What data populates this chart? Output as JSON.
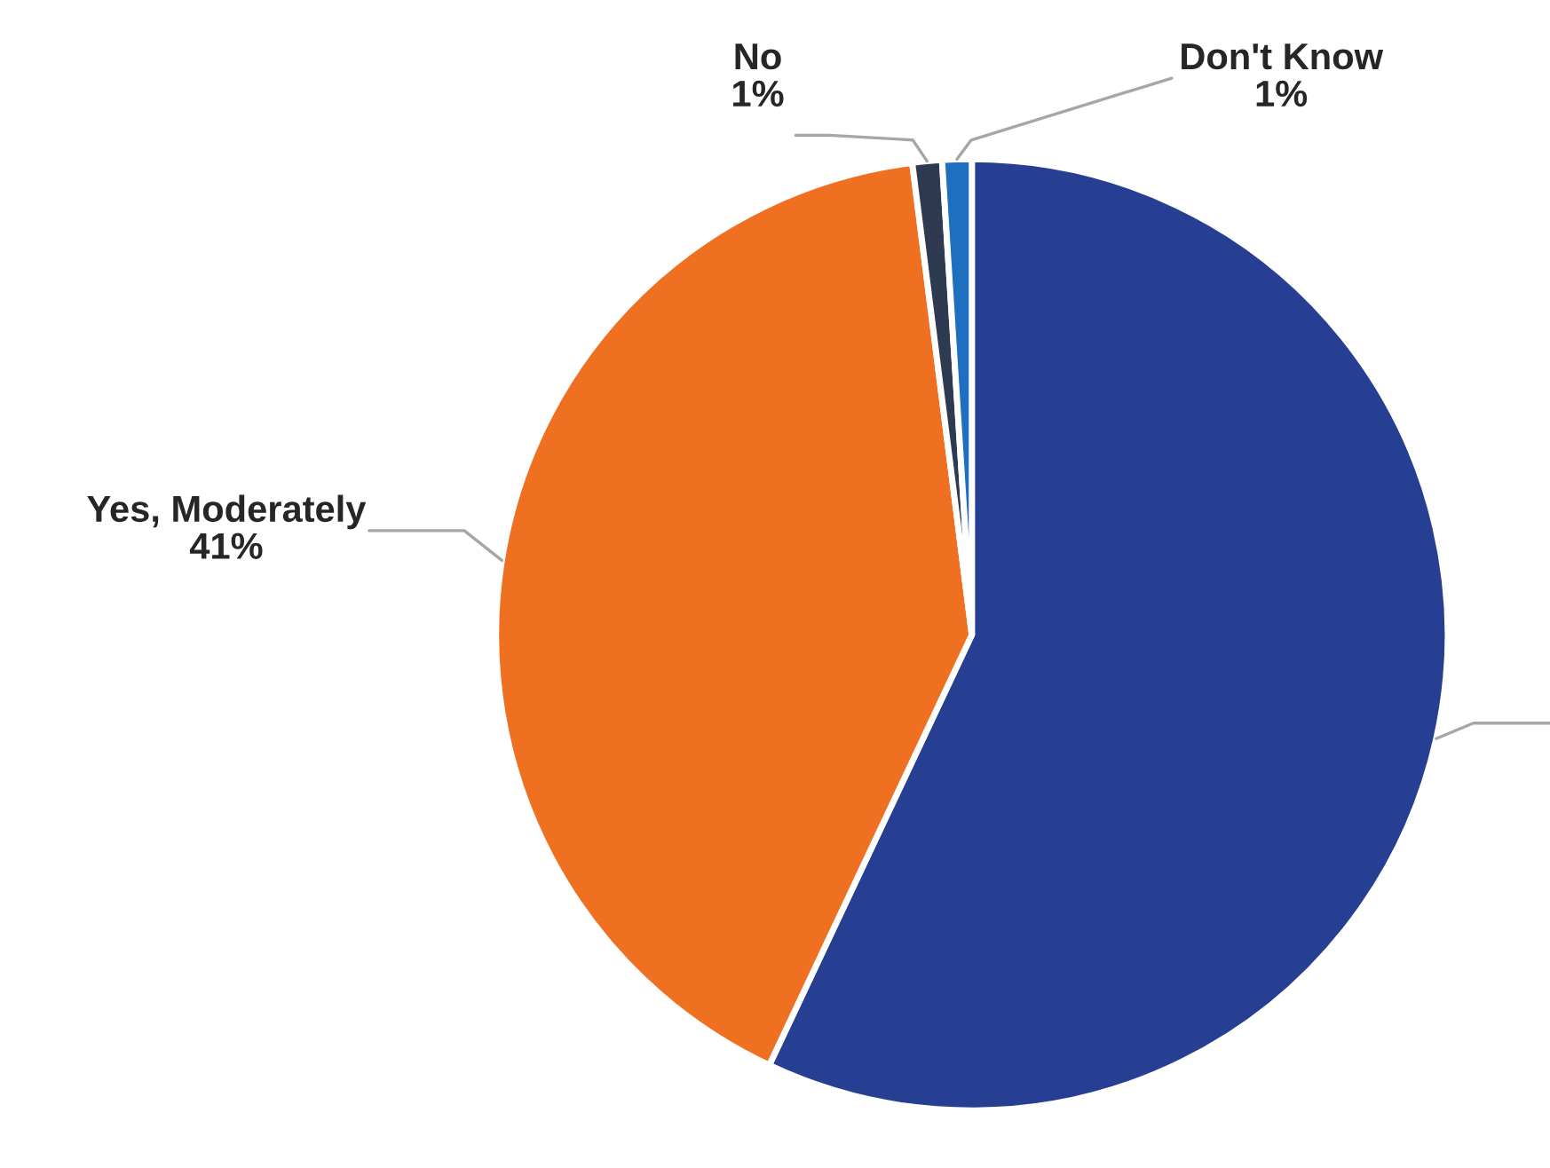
{
  "chart_data": {
    "type": "pie",
    "categories": [
      null,
      "Yes, Moderately",
      "No",
      "Don't Know"
    ],
    "values": [
      57,
      41,
      1,
      1
    ],
    "value_labels": [
      null,
      "41%",
      "1%",
      "1%"
    ],
    "colors": [
      "#263f93",
      "#f07022",
      "#2e3a4f",
      "#1f6fc0"
    ],
    "legend": false
  }
}
